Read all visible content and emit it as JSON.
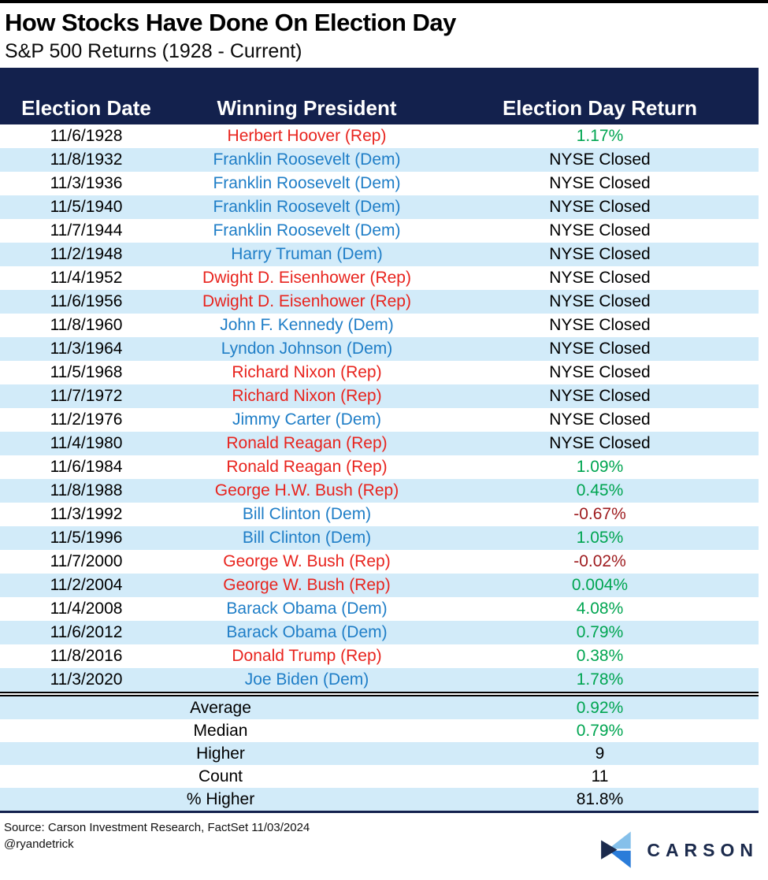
{
  "header": {
    "title": "How Stocks Have Done On Election Day",
    "subtitle": "S&P 500 Returns (1928 - Current)"
  },
  "colors": {
    "navy": "#13214d",
    "stripe": "#d2ebf9",
    "rep": "#e8241e",
    "dem": "#1f7ec7",
    "pos": "#00a551",
    "neg": "#9e1b1e",
    "logo_light": "#85c0ea",
    "logo_mid": "#2a7cd9",
    "logo_dark": "#1b2a4c"
  },
  "chart_data": {
    "type": "table",
    "title": "How Stocks Have Done On Election Day",
    "subtitle": "S&P 500 Returns (1928 - Current)",
    "columns": [
      "Election Date",
      "Winning President",
      "Election Day Return"
    ],
    "summary_stats": {
      "average_pct": 0.92,
      "median_pct": 0.79,
      "higher": 9,
      "count": 11,
      "pct_higher": 81.8
    }
  },
  "table": {
    "columns": [
      {
        "label": "Election Date"
      },
      {
        "label": "Winning President"
      },
      {
        "label": "Election Day Return"
      }
    ],
    "rows": [
      {
        "date": "11/6/1928",
        "president": "Herbert Hoover (Rep)",
        "party": "rep",
        "return": "1.17%",
        "return_type": "positive"
      },
      {
        "date": "11/8/1932",
        "president": "Franklin Roosevelt (Dem)",
        "party": "dem",
        "return": "NYSE Closed",
        "return_type": "closed"
      },
      {
        "date": "11/3/1936",
        "president": "Franklin Roosevelt (Dem)",
        "party": "dem",
        "return": "NYSE Closed",
        "return_type": "closed"
      },
      {
        "date": "11/5/1940",
        "president": "Franklin Roosevelt (Dem)",
        "party": "dem",
        "return": "NYSE Closed",
        "return_type": "closed"
      },
      {
        "date": "11/7/1944",
        "president": "Franklin Roosevelt (Dem)",
        "party": "dem",
        "return": "NYSE Closed",
        "return_type": "closed"
      },
      {
        "date": "11/2/1948",
        "president": "Harry Truman (Dem)",
        "party": "dem",
        "return": "NYSE Closed",
        "return_type": "closed"
      },
      {
        "date": "11/4/1952",
        "president": "Dwight D. Eisenhower (Rep)",
        "party": "rep",
        "return": "NYSE Closed",
        "return_type": "closed"
      },
      {
        "date": "11/6/1956",
        "president": "Dwight D. Eisenhower (Rep)",
        "party": "rep",
        "return": "NYSE Closed",
        "return_type": "closed"
      },
      {
        "date": "11/8/1960",
        "president": "John F. Kennedy (Dem)",
        "party": "dem",
        "return": "NYSE Closed",
        "return_type": "closed"
      },
      {
        "date": "11/3/1964",
        "president": "Lyndon Johnson (Dem)",
        "party": "dem",
        "return": "NYSE Closed",
        "return_type": "closed"
      },
      {
        "date": "11/5/1968",
        "president": "Richard Nixon (Rep)",
        "party": "rep",
        "return": "NYSE Closed",
        "return_type": "closed"
      },
      {
        "date": "11/7/1972",
        "president": "Richard Nixon (Rep)",
        "party": "rep",
        "return": "NYSE Closed",
        "return_type": "closed"
      },
      {
        "date": "11/2/1976",
        "president": "Jimmy Carter (Dem)",
        "party": "dem",
        "return": "NYSE Closed",
        "return_type": "closed"
      },
      {
        "date": "11/4/1980",
        "president": "Ronald Reagan (Rep)",
        "party": "rep",
        "return": "NYSE Closed",
        "return_type": "closed"
      },
      {
        "date": "11/6/1984",
        "president": "Ronald Reagan (Rep)",
        "party": "rep",
        "return": "1.09%",
        "return_type": "positive"
      },
      {
        "date": "11/8/1988",
        "president": "George H.W. Bush (Rep)",
        "party": "rep",
        "return": "0.45%",
        "return_type": "positive"
      },
      {
        "date": "11/3/1992",
        "president": "Bill Clinton (Dem)",
        "party": "dem",
        "return": "-0.67%",
        "return_type": "negative"
      },
      {
        "date": "11/5/1996",
        "president": "Bill Clinton (Dem)",
        "party": "dem",
        "return": "1.05%",
        "return_type": "positive"
      },
      {
        "date": "11/7/2000",
        "president": "George W. Bush (Rep)",
        "party": "rep",
        "return": "-0.02%",
        "return_type": "negative"
      },
      {
        "date": "11/2/2004",
        "president": "George W. Bush (Rep)",
        "party": "rep",
        "return": "0.004%",
        "return_type": "positive"
      },
      {
        "date": "11/4/2008",
        "president": "Barack Obama (Dem)",
        "party": "dem",
        "return": "4.08%",
        "return_type": "positive"
      },
      {
        "date": "11/6/2012",
        "president": "Barack Obama (Dem)",
        "party": "dem",
        "return": "0.79%",
        "return_type": "positive"
      },
      {
        "date": "11/8/2016",
        "president": "Donald Trump (Rep)",
        "party": "rep",
        "return": "0.38%",
        "return_type": "positive"
      },
      {
        "date": "11/3/2020",
        "president": "Joe Biden (Dem)",
        "party": "dem",
        "return": "1.78%",
        "return_type": "positive"
      }
    ],
    "summary": [
      {
        "label": "Average",
        "value": "0.92%",
        "value_type": "positive"
      },
      {
        "label": "Median",
        "value": "0.79%",
        "value_type": "positive"
      },
      {
        "label": "Higher",
        "value": "9",
        "value_type": "closed"
      },
      {
        "label": "Count",
        "value": "11",
        "value_type": "closed"
      },
      {
        "label": "% Higher",
        "value": "81.8%",
        "value_type": "closed"
      }
    ]
  },
  "footer": {
    "source": "Source: Carson Investment Research, FactSet 11/03/2024",
    "handle": "@ryandetrick",
    "logo_text": "CARSON"
  }
}
